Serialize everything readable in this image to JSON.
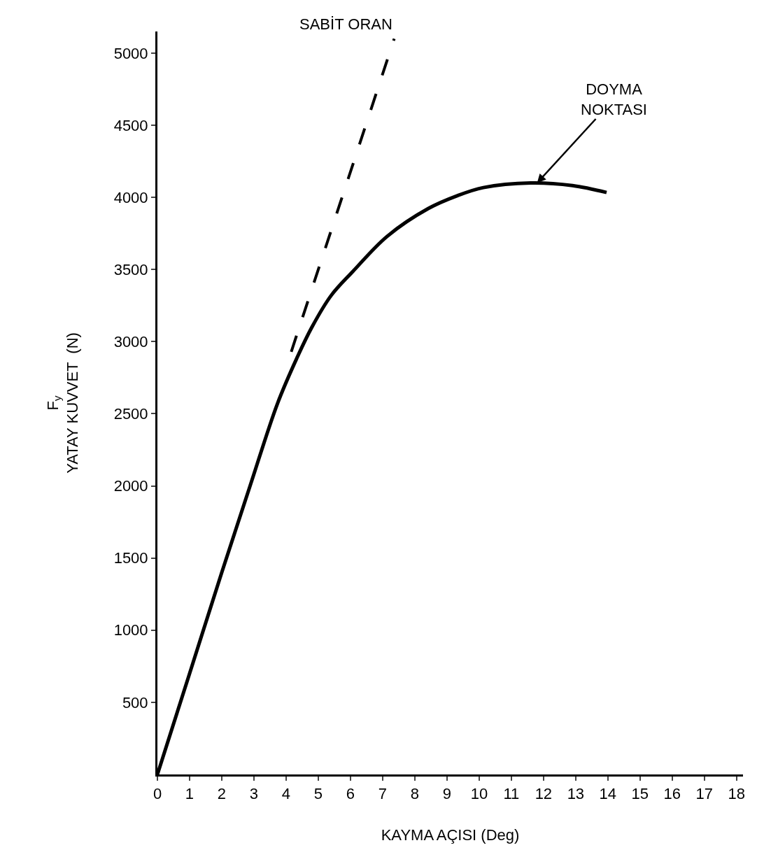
{
  "chart_data": {
    "type": "line",
    "xlabel": "KAYMA AÇISI (Deg)",
    "ylabel": "F$_{y}$\nYATAY KUVVET  (N)",
    "xlim": [
      0,
      18.2
    ],
    "xticks": [
      0,
      1,
      2,
      3,
      4,
      5,
      6,
      7,
      8,
      9,
      10,
      11,
      12,
      13,
      14,
      15,
      16,
      17,
      18
    ],
    "ylim": [
      0,
      5150
    ],
    "yticks": [
      500,
      1000,
      1500,
      2000,
      2500,
      3000,
      3500,
      4000,
      4500,
      5000
    ],
    "marker": "none",
    "series": [
      {
        "color": "#000000",
        "line_style": "solid",
        "x": [
          0,
          1,
          2,
          2.88,
          3.73,
          4.33,
          4.8,
          5.4,
          6.08,
          7.14,
          8.42,
          9.3,
          10.13,
          11.6,
          12.9,
          13.96
        ],
        "values": [
          0,
          700,
          1400,
          2000,
          2570,
          2884,
          3100,
          3320,
          3488,
          3730,
          3923,
          4010,
          4068,
          4100,
          4082,
          4034
        ]
      },
      {
        "color": "#000000",
        "line_style": "dashed",
        "x": [
          4.16,
          7.36
        ],
        "values": [
          2930,
          5100
        ]
      }
    ],
    "annotations": [
      {
        "text": "SABİT ORAN",
        "x": 7.36,
        "y": 5100
      },
      {
        "text": "DOYMA\nNOKTASI",
        "x": 11.8,
        "y": 4100
      }
    ]
  }
}
